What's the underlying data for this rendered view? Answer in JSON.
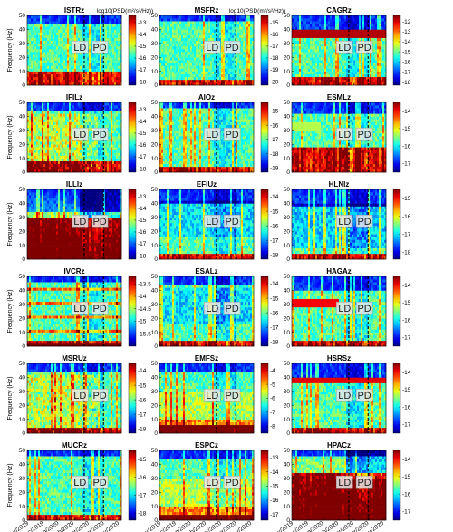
{
  "chart_data": {
    "type": "heatmap",
    "y_label": "Frequency (Hz)",
    "y_ticks": [
      0,
      10,
      20,
      30,
      40,
      50
    ],
    "ylim": [
      0,
      50
    ],
    "x_ticks": [
      "01/Nov/2019",
      "01/Dec/2019",
      "01/Jan/2020",
      "01/Feb/2020",
      "01/Mar/2020",
      "01/Apr/2020",
      "01/May/2020"
    ],
    "period_labels": [
      "LD",
      "PD"
    ],
    "colorbar_label": "log10(PSD(m²/s²/Hz))",
    "colormap": "jet",
    "panels": [
      {
        "title": "ISTRz",
        "cbar_ticks": [
          "-13",
          "-14",
          "-15",
          "-16",
          "-17",
          "-18"
        ],
        "cbar_range": [
          -18.3,
          -12.4
        ],
        "unit_label": true,
        "pattern": "A",
        "high_freq_cutoff": 0.88,
        "low_freq_band": 0.18
      },
      {
        "title": "MSFRz",
        "cbar_ticks": [
          "-15",
          "-16",
          "-17",
          "-18",
          "-19",
          "-20"
        ],
        "cbar_range": [
          -20.3,
          -14.4
        ],
        "unit_label": true,
        "pattern": "B",
        "high_freq_cutoff": 0.95,
        "low_freq_band": 0.05
      },
      {
        "title": "CAGRz",
        "cbar_ticks": [
          "-12",
          "-13",
          "-14",
          "-15",
          "-16",
          "-17",
          "-18"
        ],
        "cbar_range": [
          -18.3,
          -11.4
        ],
        "unit_label": false,
        "pattern": "C",
        "high_freq_cutoff": 0.78,
        "low_freq_band": 0.1
      },
      {
        "title": "IFILz",
        "cbar_ticks": [
          "-13",
          "-14",
          "-15",
          "-16",
          "-17",
          "-18"
        ],
        "cbar_range": [
          -18.3,
          -12.4
        ],
        "unit_label": false,
        "pattern": "D",
        "high_freq_cutoff": 0.88,
        "low_freq_band": 0.15
      },
      {
        "title": "AIOz",
        "cbar_ticks": [
          "-15",
          "-16",
          "-17",
          "-18",
          "-19"
        ],
        "cbar_range": [
          -19.3,
          -14.4
        ],
        "unit_label": false,
        "pattern": "B",
        "high_freq_cutoff": 0.92,
        "low_freq_band": 0.08
      },
      {
        "title": "ESMLz",
        "cbar_ticks": [
          "-14",
          "-15",
          "-16",
          "-17"
        ],
        "cbar_range": [
          -17.5,
          -13.5
        ],
        "unit_label": false,
        "pattern": "E",
        "high_freq_cutoff": 0.85,
        "low_freq_band": 0.35
      },
      {
        "title": "ILLIz",
        "cbar_ticks": [
          "-13",
          "-14",
          "-15",
          "-16",
          "-17",
          "-18"
        ],
        "cbar_range": [
          -18.3,
          -12.4
        ],
        "unit_label": false,
        "pattern": "F",
        "high_freq_cutoff": 0.7,
        "low_freq_band": 0.6
      },
      {
        "title": "EFIUz",
        "cbar_ticks": [
          "-14",
          "-15",
          "-16",
          "-17",
          "-18"
        ],
        "cbar_range": [
          -18.3,
          -13.5
        ],
        "unit_label": false,
        "pattern": "G",
        "high_freq_cutoff": 0.8,
        "low_freq_band": 0.05
      },
      {
        "title": "HLNIz",
        "cbar_ticks": [
          "-15",
          "-16",
          "-17",
          "-18"
        ],
        "cbar_range": [
          -18.4,
          -14.5
        ],
        "unit_label": false,
        "pattern": "H",
        "high_freq_cutoff": 0.78,
        "low_freq_band": 0.05
      },
      {
        "title": "IVCRz",
        "cbar_ticks": [
          "-13.5",
          "-14",
          "-14.5",
          "-15",
          "-15.5"
        ],
        "cbar_range": [
          -16,
          -13.2
        ],
        "unit_label": false,
        "pattern": "I",
        "high_freq_cutoff": 0.95,
        "low_freq_band": 0.05
      },
      {
        "title": "ESALz",
        "cbar_ticks": [
          "-14",
          "-15",
          "-16",
          "-17",
          "-18"
        ],
        "cbar_range": [
          -18.3,
          -13.5
        ],
        "unit_label": false,
        "pattern": "G",
        "high_freq_cutoff": 0.9,
        "low_freq_band": 0.05
      },
      {
        "title": "HAGAz",
        "cbar_ticks": [
          "-14",
          "-15",
          "-16",
          "-17"
        ],
        "cbar_range": [
          -17.5,
          -13.5
        ],
        "unit_label": false,
        "pattern": "J",
        "high_freq_cutoff": 0.82,
        "low_freq_band": 0.05
      },
      {
        "title": "MSRUz",
        "cbar_ticks": [
          "-14",
          "-15",
          "-16",
          "-17",
          "-18"
        ],
        "cbar_range": [
          -18.3,
          -13.5
        ],
        "unit_label": false,
        "pattern": "D",
        "high_freq_cutoff": 0.9,
        "low_freq_band": 0.08
      },
      {
        "title": "EMFSz",
        "cbar_ticks": [
          "-4",
          "-5",
          "-6",
          "-7",
          "-8"
        ],
        "cbar_range": [
          -8.5,
          -3.5
        ],
        "unit_label": false,
        "pattern": "K",
        "high_freq_cutoff": 0.9,
        "low_freq_band": 0.12
      },
      {
        "title": "HSRSz",
        "cbar_ticks": [
          "-14",
          "-15",
          "-16",
          "-17"
        ],
        "cbar_range": [
          -17.5,
          -13.5
        ],
        "unit_label": false,
        "pattern": "L",
        "high_freq_cutoff": 0.82,
        "low_freq_band": 0.05
      },
      {
        "title": "MUCRz",
        "cbar_ticks": [
          "-15",
          "-16",
          "-17",
          "-18"
        ],
        "cbar_range": [
          -18.4,
          -14.5
        ],
        "unit_label": false,
        "pattern": "B",
        "high_freq_cutoff": 0.92,
        "low_freq_band": 0.05
      },
      {
        "title": "ESPCz",
        "cbar_ticks": [
          "-13",
          "-14",
          "-15",
          "-16",
          "-17"
        ],
        "cbar_range": [
          -17.4,
          -12.5
        ],
        "unit_label": false,
        "pattern": "K",
        "high_freq_cutoff": 0.9,
        "low_freq_band": 0.06
      },
      {
        "title": "HPACz",
        "cbar_ticks": [
          "-14",
          "-15",
          "-16",
          "-17"
        ],
        "cbar_range": [
          -17.5,
          -13.5
        ],
        "unit_label": false,
        "pattern": "F",
        "high_freq_cutoff": 0.92,
        "low_freq_band": 0.7
      }
    ]
  }
}
